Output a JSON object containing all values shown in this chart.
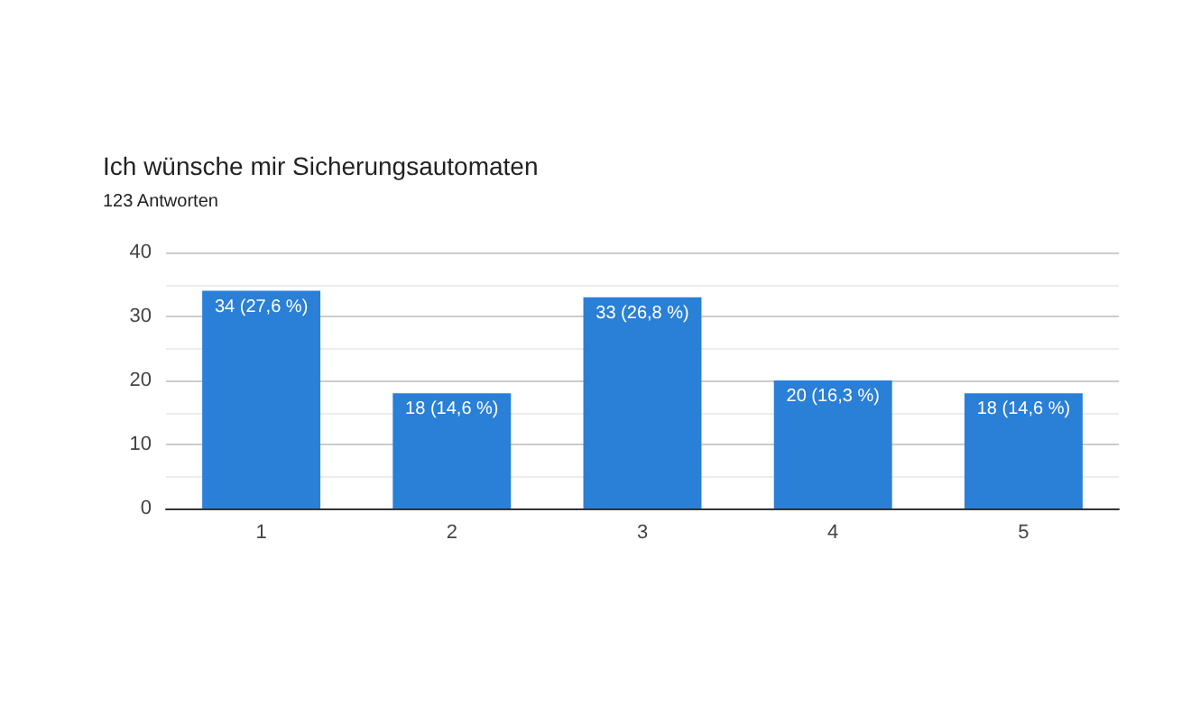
{
  "chart_data": {
    "type": "bar",
    "title": "Ich wünsche mir Sicherungsautomaten",
    "subtitle": "123 Antworten",
    "categories": [
      "1",
      "2",
      "3",
      "4",
      "5"
    ],
    "values": [
      34,
      18,
      33,
      20,
      18
    ],
    "value_labels": [
      "34 (27,6 %)",
      "18 (14,6 %)",
      "33 (26,8 %)",
      "20 (16,3 %)",
      "18 (14,6 %)"
    ],
    "color": "#2a7fd6",
    "ylim": [
      0,
      40
    ],
    "yticks": [
      0,
      10,
      20,
      30,
      40
    ],
    "grid": "y"
  }
}
